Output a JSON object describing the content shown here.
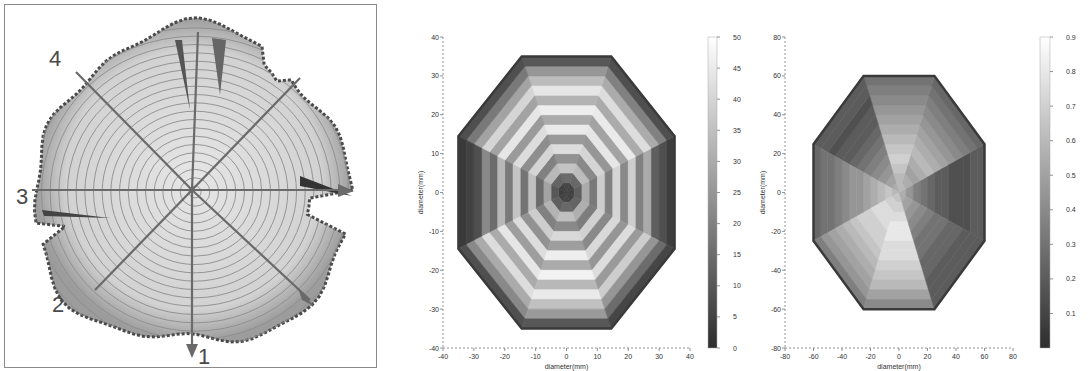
{
  "chart_data": [
    {
      "type": "image",
      "labels": [
        "1",
        "2",
        "3",
        "4"
      ]
    },
    {
      "type": "contour",
      "x_label": "diameter(mm)",
      "y_label": "diameter(mm)",
      "xlim": [
        -40,
        40
      ],
      "ylim": [
        -40,
        40
      ],
      "xticks": [
        -40,
        -30,
        -20,
        -10,
        0,
        10,
        20,
        30,
        40
      ],
      "yticks": [
        -40,
        -30,
        -20,
        -10,
        0,
        10,
        20,
        30,
        40
      ],
      "directions": [
        0,
        45,
        90,
        135,
        180,
        225,
        270,
        315
      ],
      "radii": [
        2.5,
        5,
        7.5,
        10,
        12.5,
        15,
        17.5,
        20,
        22.5,
        25,
        27.5,
        30,
        32.5,
        35
      ],
      "cells": [
        [
          5,
          5,
          6,
          5,
          4,
          5,
          6,
          5
        ],
        [
          12,
          14,
          15,
          13,
          10,
          12,
          14,
          13
        ],
        [
          30,
          34,
          36,
          33,
          28,
          32,
          35,
          31
        ],
        [
          18,
          22,
          24,
          20,
          15,
          20,
          22,
          19
        ],
        [
          38,
          40,
          42,
          40,
          35,
          38,
          41,
          39
        ],
        [
          20,
          25,
          26,
          23,
          17,
          24,
          27,
          22
        ],
        [
          40,
          44,
          45,
          42,
          36,
          42,
          46,
          41
        ],
        [
          22,
          28,
          30,
          26,
          18,
          27,
          30,
          25
        ],
        [
          38,
          45,
          46,
          44,
          33,
          44,
          47,
          42
        ],
        [
          20,
          30,
          32,
          28,
          15,
          30,
          33,
          26
        ],
        [
          30,
          42,
          44,
          40,
          22,
          42,
          45,
          38
        ],
        [
          12,
          30,
          34,
          28,
          8,
          30,
          35,
          25
        ],
        [
          8,
          20,
          25,
          18,
          5,
          22,
          26,
          15
        ],
        [
          4,
          8,
          10,
          8,
          3,
          8,
          10,
          6
        ]
      ],
      "colorbar": {
        "range": [
          0,
          50
        ],
        "ticks": [
          0,
          5,
          10,
          15,
          20,
          25,
          30,
          35,
          40,
          45,
          50
        ]
      }
    },
    {
      "type": "contour",
      "x_label": "diameter(mm)",
      "y_label": "diameter(mm)",
      "xlim": [
        -80,
        80
      ],
      "ylim": [
        -80,
        80
      ],
      "xticks": [
        -80,
        -60,
        -40,
        -20,
        0,
        20,
        40,
        60,
        80
      ],
      "yticks": [
        -80,
        -60,
        -40,
        -20,
        0,
        20,
        40,
        60,
        80
      ],
      "directions": [
        0,
        45,
        90,
        135,
        180,
        225,
        270,
        315
      ],
      "radii": [
        5,
        10,
        15,
        20,
        25,
        30,
        35,
        40,
        45,
        50,
        55,
        60
      ],
      "cells": [
        [
          0.55,
          0.6,
          0.6,
          0.55,
          0.6,
          0.65,
          0.65,
          0.55
        ],
        [
          0.45,
          0.55,
          0.6,
          0.5,
          0.65,
          0.7,
          0.7,
          0.5
        ],
        [
          0.35,
          0.5,
          0.65,
          0.45,
          0.6,
          0.75,
          0.75,
          0.45
        ],
        [
          0.3,
          0.55,
          0.7,
          0.4,
          0.55,
          0.75,
          0.8,
          0.4
        ],
        [
          0.25,
          0.6,
          0.65,
          0.35,
          0.5,
          0.7,
          0.8,
          0.35
        ],
        [
          0.2,
          0.55,
          0.6,
          0.3,
          0.45,
          0.7,
          0.75,
          0.3
        ],
        [
          0.2,
          0.5,
          0.55,
          0.25,
          0.45,
          0.65,
          0.75,
          0.3
        ],
        [
          0.15,
          0.45,
          0.5,
          0.2,
          0.4,
          0.6,
          0.7,
          0.25
        ],
        [
          0.15,
          0.4,
          0.45,
          0.2,
          0.35,
          0.55,
          0.65,
          0.25
        ],
        [
          0.15,
          0.35,
          0.4,
          0.15,
          0.3,
          0.5,
          0.6,
          0.2
        ],
        [
          0.2,
          0.3,
          0.35,
          0.2,
          0.3,
          0.45,
          0.5,
          0.2
        ],
        [
          0.2,
          0.25,
          0.3,
          0.2,
          0.25,
          0.35,
          0.4,
          0.2
        ]
      ],
      "colorbar": {
        "range": [
          0,
          0.9
        ],
        "ticks": [
          0.1,
          0.2,
          0.3,
          0.4,
          0.5,
          0.6,
          0.7,
          0.8,
          0.9
        ]
      }
    }
  ]
}
